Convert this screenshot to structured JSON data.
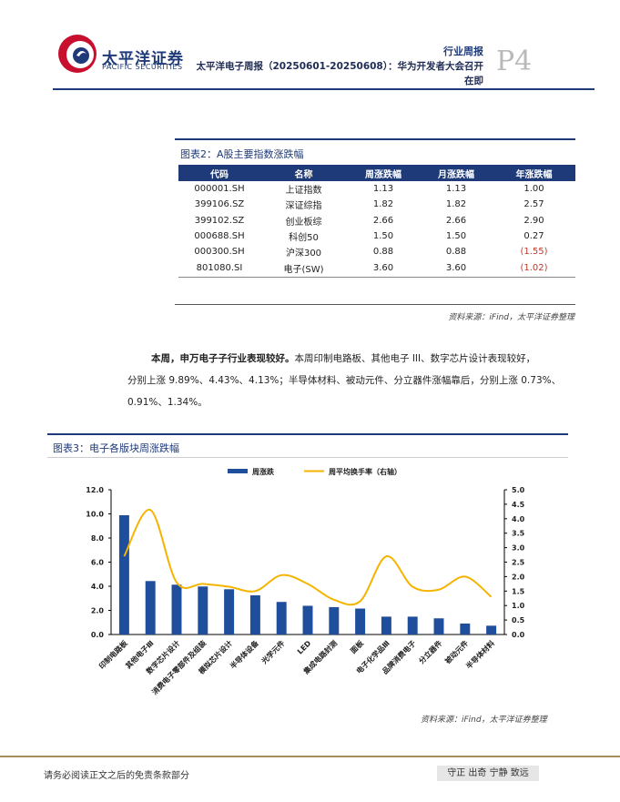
{
  "header": {
    "brand_cn": "太平洋证券",
    "brand_en": "PACIFIC SECURITIES",
    "report_type": "行业周报",
    "title_line1": "太平洋电子周报（20250601-20250608）：华为开发者大会召开",
    "title_line2": "在即",
    "page": "P4",
    "colors": {
      "brand": "#1f3a78",
      "logo_red": "#c8102e"
    }
  },
  "figure2": {
    "title": "图表2：A股主要指数涨跌幅",
    "columns": [
      "代码",
      "名称",
      "周涨跌幅",
      "月涨跌幅",
      "年涨跌幅"
    ],
    "rows": [
      [
        "000001.SH",
        "上证指数",
        "1.13",
        "1.13",
        "1.00"
      ],
      [
        "399106.SZ",
        "深证综指",
        "1.82",
        "1.82",
        "2.57"
      ],
      [
        "399102.SZ",
        "创业板综",
        "2.66",
        "2.66",
        "2.90"
      ],
      [
        "000688.SH",
        "科创50",
        "1.50",
        "1.50",
        "0.27"
      ],
      [
        "000300.SH",
        "沪深300",
        "0.88",
        "0.88",
        "(1.55)"
      ],
      [
        "801080.SI",
        "电子(SW)",
        "3.60",
        "3.60",
        "(1.02)"
      ]
    ],
    "source": "资料来源：iFind，太平洋证券整理"
  },
  "body": {
    "lead_bold": "本周，申万电子子行业表现较好。",
    "line1_rest": "本周印制电路板、其他电子 III、数字芯片设计表现较好，",
    "line2": "分别上涨 9.89%、4.43%、4.13%；半导体材料、被动元件、分立器件涨幅靠后，分别上涨 0.73%、",
    "line3": "0.91%、1.34%。"
  },
  "figure3": {
    "title": "图表3：电子各版块周涨跌幅",
    "source": "资料来源：iFind，太平洋证券整理"
  },
  "chart_data": {
    "type": "bar",
    "categories": [
      "印制电路板",
      "其他电子Ⅲ",
      "数字芯片设计",
      "消费电子零部件及组装",
      "模拟芯片设计",
      "半导体设备",
      "光学元件",
      "LED",
      "集成电路封测",
      "面板",
      "电子化学品Ⅲ",
      "品牌消费电子",
      "分立器件",
      "被动元件",
      "半导体材料"
    ],
    "series": [
      {
        "name": "周涨跌",
        "type": "bar",
        "axis": "left",
        "color": "#1f4e9c",
        "values": [
          9.89,
          4.43,
          4.13,
          3.98,
          3.75,
          3.25,
          2.7,
          2.38,
          2.27,
          2.15,
          1.48,
          1.48,
          1.34,
          0.91,
          0.73
        ]
      },
      {
        "name": "周平均换手率（右轴）",
        "type": "line",
        "axis": "right",
        "color": "#f4b400",
        "values": [
          2.7,
          4.3,
          1.8,
          1.75,
          1.65,
          1.5,
          2.05,
          1.75,
          1.2,
          1.15,
          2.7,
          1.65,
          1.55,
          2.0,
          1.3
        ]
      }
    ],
    "yleft": {
      "min": 0,
      "max": 12,
      "step": 2,
      "ticks": [
        "0.0",
        "2.0",
        "4.0",
        "6.0",
        "8.0",
        "10.0",
        "12.0"
      ]
    },
    "yright": {
      "min": 0,
      "max": 5,
      "step": 0.5,
      "ticks": [
        "0.0",
        "0.5",
        "1.0",
        "1.5",
        "2.0",
        "2.5",
        "3.0",
        "3.5",
        "4.0",
        "4.5",
        "5.0"
      ]
    },
    "legend_position": "top-center",
    "grid": false
  },
  "footer": {
    "disclaimer": "请务必阅读正文之后的免责条款部分",
    "motto": "守正 出奇 宁静 致远"
  }
}
